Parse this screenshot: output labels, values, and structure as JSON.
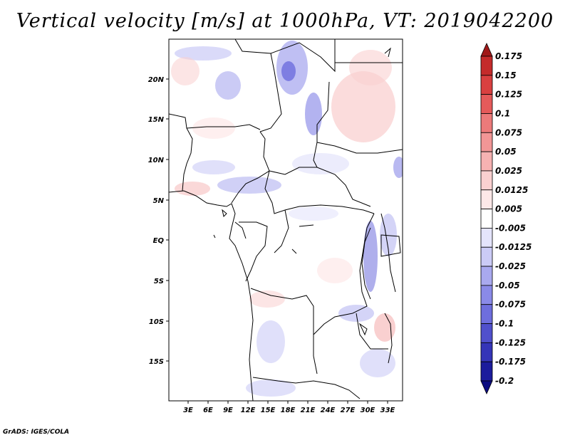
{
  "title": "Vertical velocity [m/s] at 1000hPa, VT: 2019042200",
  "credit": "GrADS: IGES/COLA",
  "map": {
    "lat_labels": [
      "20N",
      "15N",
      "10N",
      "5N",
      "EQ",
      "5S",
      "10S",
      "15S"
    ],
    "lon_labels": [
      "3E",
      "6E",
      "9E",
      "12E",
      "15E",
      "18E",
      "21E",
      "24E",
      "27E",
      "30E",
      "33E"
    ]
  },
  "colorbar": {
    "levels": [
      "0.175",
      "0.15",
      "0.125",
      "0.1",
      "0.075",
      "0.05",
      "0.025",
      "0.0125",
      "0.005",
      "-0.005",
      "-0.0125",
      "-0.025",
      "-0.05",
      "-0.075",
      "-0.1",
      "-0.125",
      "-0.175",
      "-0.2"
    ],
    "colors": [
      "#a01919",
      "#c42b2b",
      "#d94040",
      "#e55a5a",
      "#ec7a7a",
      "#f29696",
      "#f6b2b2",
      "#fad0d0",
      "#fde8e8",
      "#ffffff",
      "#e4e4fb",
      "#cbcbf6",
      "#a9a9ef",
      "#8a8ae8",
      "#6e6edd",
      "#5050cc",
      "#3535b8",
      "#1c1c9c",
      "#0c0c80"
    ]
  }
}
